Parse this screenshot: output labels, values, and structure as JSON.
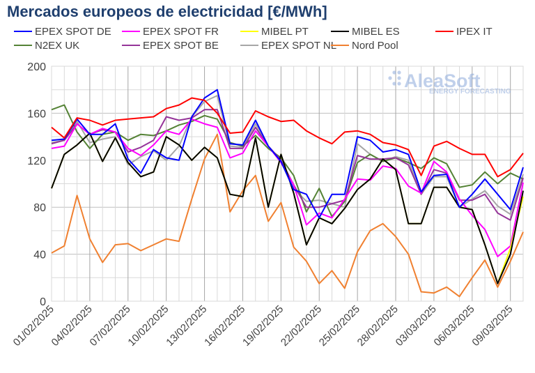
{
  "chart_data": {
    "type": "line",
    "title": "Mercados europeos de electricidad [€/MWh]",
    "xlabel": "",
    "ylabel": "",
    "ylim": [
      0,
      200
    ],
    "yticks": [
      0,
      40,
      80,
      120,
      160,
      200
    ],
    "grid": true,
    "legend_position": "top",
    "x": [
      "01/02/2025",
      "02/02/2025",
      "03/02/2025",
      "04/02/2025",
      "05/02/2025",
      "06/02/2025",
      "07/02/2025",
      "08/02/2025",
      "09/02/2025",
      "10/02/2025",
      "11/02/2025",
      "12/02/2025",
      "13/02/2025",
      "14/02/2025",
      "15/02/2025",
      "16/02/2025",
      "17/02/2025",
      "18/02/2025",
      "19/02/2025",
      "20/02/2025",
      "21/02/2025",
      "22/02/2025",
      "23/02/2025",
      "24/02/2025",
      "25/02/2025",
      "26/02/2025",
      "27/02/2025",
      "28/02/2025",
      "01/03/2025",
      "02/03/2025",
      "03/03/2025",
      "04/03/2025",
      "05/03/2025",
      "06/03/2025",
      "07/03/2025",
      "08/03/2025",
      "09/03/2025",
      "10/03/2025"
    ],
    "xtick_labels": [
      "01/02/2025",
      "04/02/2025",
      "07/02/2025",
      "10/02/2025",
      "13/02/2025",
      "16/02/2025",
      "19/02/2025",
      "22/02/2025",
      "25/02/2025",
      "28/02/2025",
      "03/03/2025",
      "06/03/2025",
      "09/03/2025"
    ],
    "series": [
      {
        "name": "Nord Pool",
        "color": "#f08030",
        "values": [
          41,
          47,
          90,
          53,
          33,
          48,
          49,
          43,
          48,
          53,
          51,
          87,
          121,
          142,
          76,
          94,
          107,
          68,
          84,
          46,
          34,
          15,
          26,
          11,
          42,
          60,
          66,
          55,
          40,
          8,
          7,
          12,
          4,
          20,
          35,
          12,
          34,
          59
        ]
      },
      {
        "name": "EPEX SPOT NL",
        "color": "#a6a6a6",
        "values": [
          135,
          137,
          153,
          135,
          138,
          140,
          116,
          123,
          128,
          120,
          132,
          157,
          170,
          175,
          132,
          131,
          151,
          132,
          120,
          96,
          85,
          86,
          83,
          80,
          134,
          125,
          119,
          123,
          120,
          91,
          106,
          106,
          80,
          87,
          94,
          81,
          74,
          108
        ]
      },
      {
        "name": "N2EX UK",
        "color": "#548235",
        "values": [
          163,
          167,
          144,
          130,
          142,
          144,
          137,
          142,
          141,
          145,
          150,
          153,
          158,
          155,
          135,
          132,
          141,
          130,
          122,
          107,
          76,
          96,
          72,
          85,
          118,
          125,
          119,
          122,
          118,
          113,
          122,
          117,
          97,
          99,
          110,
          100,
          109,
          104
        ]
      },
      {
        "name": "EPEX SPOT BE",
        "color": "#953499",
        "values": [
          134,
          137,
          151,
          142,
          146,
          144,
          127,
          131,
          137,
          157,
          154,
          156,
          163,
          163,
          130,
          130,
          148,
          132,
          120,
          99,
          80,
          80,
          83,
          86,
          124,
          121,
          121,
          122,
          116,
          91,
          112,
          109,
          86,
          86,
          91,
          75,
          69,
          105
        ]
      },
      {
        "name": "EPEX SPOT FR",
        "color": "#ff00ff",
        "values": [
          130,
          132,
          151,
          142,
          147,
          144,
          130,
          124,
          133,
          145,
          142,
          155,
          151,
          148,
          122,
          126,
          145,
          132,
          118,
          99,
          65,
          75,
          71,
          87,
          104,
          103,
          115,
          113,
          98,
          92,
          119,
          110,
          87,
          73,
          61,
          38,
          47,
          101
        ]
      },
      {
        "name": "MIBEL PT",
        "color": "#ffff00",
        "values": [
          96,
          125,
          133,
          143,
          119,
          139,
          118,
          106,
          110,
          140,
          133,
          120,
          131,
          122,
          91,
          89,
          139,
          80,
          125,
          92,
          48,
          71,
          66,
          79,
          95,
          104,
          121,
          112,
          66,
          66,
          97,
          97,
          80,
          78,
          48,
          15,
          45,
          89
        ]
      },
      {
        "name": "MIBEL ES",
        "color": "#000000",
        "values": [
          96,
          125,
          133,
          143,
          119,
          139,
          118,
          106,
          110,
          140,
          133,
          120,
          131,
          122,
          91,
          89,
          139,
          80,
          125,
          92,
          48,
          71,
          66,
          79,
          95,
          104,
          121,
          112,
          66,
          66,
          97,
          97,
          80,
          78,
          48,
          15,
          40,
          94
        ]
      },
      {
        "name": "EPEX SPOT DE",
        "color": "#0000ff",
        "values": [
          137,
          138,
          155,
          142,
          142,
          151,
          121,
          109,
          129,
          122,
          120,
          157,
          173,
          180,
          134,
          133,
          154,
          132,
          119,
          95,
          91,
          71,
          91,
          91,
          140,
          137,
          127,
          129,
          125,
          93,
          107,
          108,
          80,
          91,
          104,
          91,
          78,
          114
        ]
      },
      {
        "name": "IPEX IT",
        "color": "#ff0000",
        "values": [
          148,
          139,
          156,
          154,
          150,
          154,
          155,
          156,
          157,
          164,
          167,
          173,
          171,
          160,
          143,
          144,
          162,
          157,
          153,
          154,
          145,
          139,
          134,
          144,
          145,
          142,
          135,
          133,
          129,
          107,
          132,
          136,
          130,
          125,
          125,
          106,
          112,
          126
        ]
      }
    ],
    "legend_order": [
      "EPEX SPOT DE",
      "EPEX SPOT FR",
      "MIBEL PT",
      "MIBEL ES",
      "IPEX IT",
      "N2EX UK",
      "EPEX SPOT BE",
      "EPEX SPOT NL",
      "Nord Pool"
    ]
  },
  "watermark": {
    "logo": "AleaSoft",
    "tagline": "ENERGY FORECASTING"
  }
}
